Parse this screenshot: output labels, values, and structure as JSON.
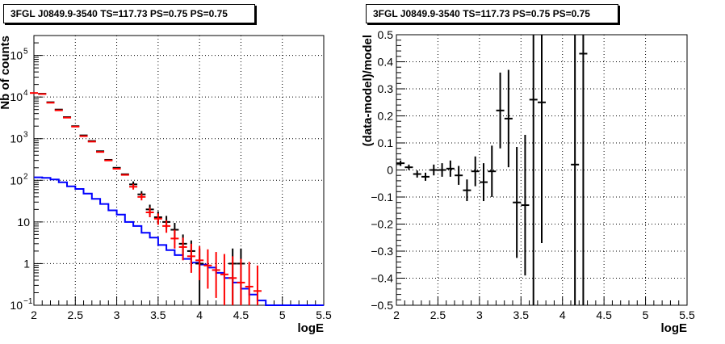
{
  "chart_data": [
    {
      "type": "line",
      "title": "3FGL J0849.9-3540 TS=117.73 PS=0.75 PS=0.75",
      "xlabel": "logE",
      "ylabel": "Nb of counts",
      "xlim": [
        2,
        5.5
      ],
      "ylim": [
        0.1,
        300000
      ],
      "yscale": "log",
      "grid": true,
      "x_ticks": [
        {
          "value": 2,
          "label": "2"
        },
        {
          "value": 2.5,
          "label": "2.5"
        },
        {
          "value": 3,
          "label": "3"
        },
        {
          "value": 3.5,
          "label": "3.5"
        },
        {
          "value": 4,
          "label": "4"
        },
        {
          "value": 4.5,
          "label": "4.5"
        },
        {
          "value": 5,
          "label": "5"
        },
        {
          "value": 5.5,
          "label": "5.5"
        }
      ],
      "y_ticks": [
        {
          "value": 0.1,
          "base": "10",
          "exp": "−1"
        },
        {
          "value": 1,
          "base": "1",
          "exp": ""
        },
        {
          "value": 10,
          "base": "10",
          "exp": ""
        },
        {
          "value": 100,
          "base": "10",
          "exp": "2"
        },
        {
          "value": 1000,
          "base": "10",
          "exp": "3"
        },
        {
          "value": 10000,
          "base": "10",
          "exp": "4"
        },
        {
          "value": 100000,
          "base": "10",
          "exp": "5"
        }
      ],
      "model_color": "#0000ff",
      "model_line": {
        "edges": [
          2.0,
          2.1,
          2.2,
          2.3,
          2.4,
          2.5,
          2.6,
          2.7,
          2.8,
          2.9,
          3.0,
          3.1,
          3.2,
          3.3,
          3.4,
          3.5,
          3.6,
          3.7,
          3.8,
          3.9,
          4.0,
          4.1,
          4.2,
          4.3,
          4.4,
          4.5,
          4.6,
          4.7,
          4.8,
          5.0,
          5.5
        ],
        "values": [
          118,
          115,
          105,
          90,
          72,
          62,
          48,
          36,
          27,
          19,
          15,
          10,
          8,
          5.5,
          4.2,
          2.8,
          2.1,
          1.6,
          1.3,
          1.05,
          0.95,
          0.8,
          0.6,
          0.45,
          0.35,
          0.25,
          0.18,
          0.13,
          0.1,
          0.1
        ]
      },
      "series": [
        {
          "color": "#000000",
          "points": [
            {
              "x": 2.1,
              "y": 12000
            },
            {
              "x": 2.2,
              "y": 7500
            },
            {
              "x": 2.3,
              "y": 5000
            },
            {
              "x": 2.4,
              "y": 3300
            },
            {
              "x": 2.5,
              "y": 2000
            },
            {
              "x": 2.6,
              "y": 1200
            },
            {
              "x": 2.7,
              "y": 880
            },
            {
              "x": 2.8,
              "y": 500
            },
            {
              "x": 2.9,
              "y": 310
            },
            {
              "x": 3.0,
              "y": 200
            },
            {
              "x": 3.1,
              "y": 140
            },
            {
              "x": 3.2,
              "y": 80,
              "lo": 68,
              "hi": 94
            },
            {
              "x": 3.3,
              "y": 46,
              "lo": 38,
              "hi": 55
            },
            {
              "x": 3.4,
              "y": 20,
              "lo": 15,
              "hi": 26
            },
            {
              "x": 3.5,
              "y": 13,
              "lo": 9,
              "hi": 18
            },
            {
              "x": 3.6,
              "y": 10,
              "lo": 7,
              "hi": 14
            },
            {
              "x": 3.7,
              "y": 6.5,
              "lo": 4,
              "hi": 9.5
            },
            {
              "x": 3.8,
              "y": 3,
              "lo": 1.6,
              "hi": 5
            },
            {
              "x": 3.9,
              "y": 2,
              "lo": 0.9,
              "hi": 3.6
            },
            {
              "x": 4.0,
              "y": 1,
              "lo": 0.1,
              "hi": 2.3
            },
            {
              "x": 4.4,
              "y": 1,
              "lo": 0.1,
              "hi": 2.3
            },
            {
              "x": 4.5,
              "y": 1,
              "lo": 0.1,
              "hi": 2.3
            }
          ]
        },
        {
          "color": "#ff0000",
          "points": [
            {
              "x": 2.0,
              "y": 12500
            },
            {
              "x": 2.1,
              "y": 11800
            },
            {
              "x": 2.2,
              "y": 7300
            },
            {
              "x": 2.3,
              "y": 4800
            },
            {
              "x": 2.4,
              "y": 3200
            },
            {
              "x": 2.5,
              "y": 1950
            },
            {
              "x": 2.6,
              "y": 1150
            },
            {
              "x": 2.7,
              "y": 850
            },
            {
              "x": 2.8,
              "y": 480
            },
            {
              "x": 2.9,
              "y": 300
            },
            {
              "x": 3.0,
              "y": 190
            },
            {
              "x": 3.1,
              "y": 135
            },
            {
              "x": 3.2,
              "y": 70,
              "lo": 60,
              "hi": 82
            },
            {
              "x": 3.3,
              "y": 40,
              "lo": 33,
              "hi": 48
            },
            {
              "x": 3.4,
              "y": 17,
              "lo": 13,
              "hi": 22
            },
            {
              "x": 3.5,
              "y": 12,
              "lo": 8.5,
              "hi": 16
            },
            {
              "x": 3.6,
              "y": 8,
              "lo": 5.5,
              "hi": 11
            },
            {
              "x": 3.7,
              "y": 4,
              "lo": 2.3,
              "hi": 6.5
            },
            {
              "x": 3.8,
              "y": 2.5,
              "lo": 1.2,
              "hi": 4.2
            },
            {
              "x": 3.9,
              "y": 1.5,
              "lo": 0.6,
              "hi": 3
            },
            {
              "x": 4.0,
              "y": 1.2,
              "lo": 0.4,
              "hi": 2.6
            },
            {
              "x": 4.1,
              "y": 0.9,
              "lo": 0.25,
              "hi": 2.2
            },
            {
              "x": 4.2,
              "y": 0.7,
              "lo": 0.15,
              "hi": 1.9
            },
            {
              "x": 4.3,
              "y": 0.55,
              "lo": 0.1,
              "hi": 1.7
            },
            {
              "x": 4.4,
              "y": 0.45,
              "lo": 0.1,
              "hi": 1.5
            },
            {
              "x": 4.5,
              "y": 0.35,
              "lo": 0.1,
              "hi": 1.3
            },
            {
              "x": 4.6,
              "y": 0.28,
              "lo": 0.1,
              "hi": 1.1
            },
            {
              "x": 4.7,
              "y": 0.22,
              "lo": 0.1,
              "hi": 0.9
            }
          ]
        }
      ]
    },
    {
      "type": "scatter",
      "title": "3FGL J0849.9-3540 TS=117.73 PS=0.75 PS=0.75",
      "xlabel": "logE",
      "ylabel": "(data-model)/model",
      "xlim": [
        2,
        5.5
      ],
      "ylim": [
        -0.5,
        0.5
      ],
      "grid": true,
      "x_ticks": [
        {
          "value": 2,
          "label": "2"
        },
        {
          "value": 2.5,
          "label": "2.5"
        },
        {
          "value": 3,
          "label": "3"
        },
        {
          "value": 3.5,
          "label": "3.5"
        },
        {
          "value": 4,
          "label": "4"
        },
        {
          "value": 4.5,
          "label": "4.5"
        },
        {
          "value": 5,
          "label": "5"
        },
        {
          "value": 5.5,
          "label": "5.5"
        }
      ],
      "y_ticks": [
        {
          "value": -0.5,
          "label": "−0.5"
        },
        {
          "value": -0.4,
          "label": "−0.4"
        },
        {
          "value": -0.3,
          "label": "−0.3"
        },
        {
          "value": -0.2,
          "label": "−0.2"
        },
        {
          "value": -0.1,
          "label": "−0.1"
        },
        {
          "value": 0,
          "label": "0"
        },
        {
          "value": 0.1,
          "label": "0.1"
        },
        {
          "value": 0.2,
          "label": "0.2"
        },
        {
          "value": 0.3,
          "label": "0.3"
        },
        {
          "value": 0.4,
          "label": "0.4"
        },
        {
          "value": 0.5,
          "label": "0.5"
        }
      ],
      "series": [
        {
          "color": "#000000",
          "points": [
            {
              "x": 2.05,
              "y": 0.025,
              "lo": 0.015,
              "hi": 0.035
            },
            {
              "x": 2.15,
              "y": 0.01,
              "lo": 0.0,
              "hi": 0.02
            },
            {
              "x": 2.25,
              "y": -0.015,
              "lo": -0.028,
              "hi": -0.002
            },
            {
              "x": 2.35,
              "y": -0.025,
              "lo": -0.04,
              "hi": -0.01
            },
            {
              "x": 2.45,
              "y": 0.0,
              "lo": -0.02,
              "hi": 0.02
            },
            {
              "x": 2.55,
              "y": 0.0,
              "lo": -0.025,
              "hi": 0.025
            },
            {
              "x": 2.65,
              "y": 0.005,
              "lo": -0.025,
              "hi": 0.035
            },
            {
              "x": 2.75,
              "y": -0.02,
              "lo": -0.055,
              "hi": 0.015
            },
            {
              "x": 2.85,
              "y": -0.075,
              "lo": -0.115,
              "hi": -0.035
            },
            {
              "x": 2.95,
              "y": -0.005,
              "lo": -0.06,
              "hi": 0.05
            },
            {
              "x": 3.05,
              "y": -0.045,
              "lo": -0.115,
              "hi": 0.025
            },
            {
              "x": 3.15,
              "y": -0.005,
              "lo": -0.1,
              "hi": 0.09
            },
            {
              "x": 3.25,
              "y": 0.22,
              "lo": 0.08,
              "hi": 0.36
            },
            {
              "x": 3.35,
              "y": 0.19,
              "lo": 0.01,
              "hi": 0.37
            },
            {
              "x": 3.45,
              "y": -0.12,
              "lo": -0.325,
              "hi": 0.085
            },
            {
              "x": 3.55,
              "y": -0.13,
              "lo": -0.39,
              "hi": 0.13
            },
            {
              "x": 3.65,
              "y": 0.26,
              "lo": -0.5,
              "hi": 0.5
            },
            {
              "x": 3.75,
              "y": 0.25,
              "lo": -0.27,
              "hi": 0.5
            },
            {
              "x": 4.15,
              "y": 0.02,
              "lo": -0.5,
              "hi": 0.5
            },
            {
              "x": 4.25,
              "y": 0.43,
              "lo": -0.5,
              "hi": 0.5
            }
          ]
        }
      ]
    }
  ]
}
